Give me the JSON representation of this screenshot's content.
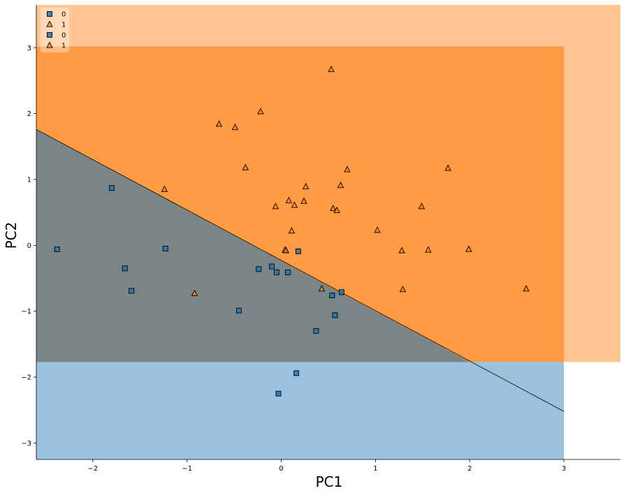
{
  "chart_data": {
    "type": "scatter",
    "xlabel": "PC1",
    "ylabel": "PC2",
    "xlim": [
      -2.6,
      3.6
    ],
    "ylim": [
      -3.25,
      3.65
    ],
    "x_ticks": [
      -2,
      -1,
      0,
      1,
      2,
      3
    ],
    "y_ticks": [
      -3,
      -2,
      -1,
      0,
      1,
      2,
      3
    ],
    "x_tick_labels": [
      "−2",
      "−1",
      "0",
      "1",
      "2",
      "3"
    ],
    "y_tick_labels": [
      "−3",
      "−2",
      "−1",
      "0",
      "1",
      "2",
      "3"
    ],
    "grid": false,
    "legend_position": "top-left",
    "legend": [
      {
        "label": "0",
        "marker": "square",
        "color": "#1f77b4"
      },
      {
        "label": "1",
        "marker": "triangle",
        "color": "#ff7f0e"
      },
      {
        "label": "0",
        "marker": "square",
        "color": "#1f77b4"
      },
      {
        "label": "1",
        "marker": "triangle",
        "color": "#ff7f0e"
      }
    ],
    "colors": {
      "class0": "#1f77b4",
      "class1": "#ff7f0e"
    },
    "regions": [
      {
        "name": "outer region class 1",
        "color": "#ff7f0e",
        "opacity": 0.45,
        "x": [
          -2.6,
          3.6
        ],
        "y": [
          -1.77,
          3.65
        ]
      },
      {
        "name": "outer region class 0",
        "color": "#1f77b4",
        "opacity": 0.45,
        "x": [
          -2.6,
          3.0
        ],
        "y": [
          -3.25,
          -1.77
        ]
      },
      {
        "name": "inner region class 1",
        "color": "#ff7f0e",
        "opacity": 0.6,
        "x": [
          -2.6,
          3.0
        ],
        "y": [
          -1.77,
          3.02
        ]
      },
      {
        "name": "inner region class 0",
        "color": "#1f77b4",
        "opacity": 0.6,
        "polygon": [
          [
            -2.6,
            1.76
          ],
          [
            2.0,
            -1.77
          ],
          [
            -2.6,
            -1.77
          ]
        ]
      }
    ],
    "decision_boundary": {
      "x": [
        -2.6,
        3.0
      ],
      "y": [
        1.76,
        -2.52
      ]
    },
    "series": [
      {
        "name": "0",
        "marker": "square",
        "color": "#1f77b4",
        "x": [
          -2.38,
          -1.8,
          -1.66,
          -1.59,
          -1.23,
          -0.24,
          -0.1,
          -0.05,
          0.07,
          0.18,
          0.37,
          0.54,
          0.57,
          0.64,
          0.16,
          -0.03,
          -0.45
        ],
        "y": [
          -0.06,
          0.87,
          -0.35,
          -0.69,
          -0.05,
          -0.36,
          -0.32,
          -0.41,
          -0.41,
          -0.09,
          -1.3,
          -0.76,
          -1.06,
          -0.71,
          -1.94,
          -2.25,
          -0.99
        ]
      },
      {
        "name": "1",
        "marker": "triangle",
        "color": "#ff7f0e",
        "x": [
          0.53,
          -0.66,
          -0.49,
          -0.22,
          -0.38,
          -1.24,
          0.26,
          0.63,
          0.7,
          1.77,
          1.49,
          0.08,
          0.14,
          0.24,
          0.55,
          0.59,
          0.11,
          1.02,
          0.04,
          0.05,
          1.28,
          1.56,
          1.99,
          0.43,
          1.29,
          2.6,
          -0.06,
          -0.92
        ],
        "y": [
          2.67,
          1.84,
          1.79,
          2.03,
          1.18,
          0.85,
          0.89,
          0.91,
          1.15,
          1.17,
          0.59,
          0.68,
          0.61,
          0.67,
          0.56,
          0.53,
          0.22,
          0.23,
          -0.07,
          -0.08,
          -0.08,
          -0.07,
          -0.06,
          -0.66,
          -0.67,
          -0.66,
          0.59,
          -0.73
        ]
      }
    ]
  }
}
